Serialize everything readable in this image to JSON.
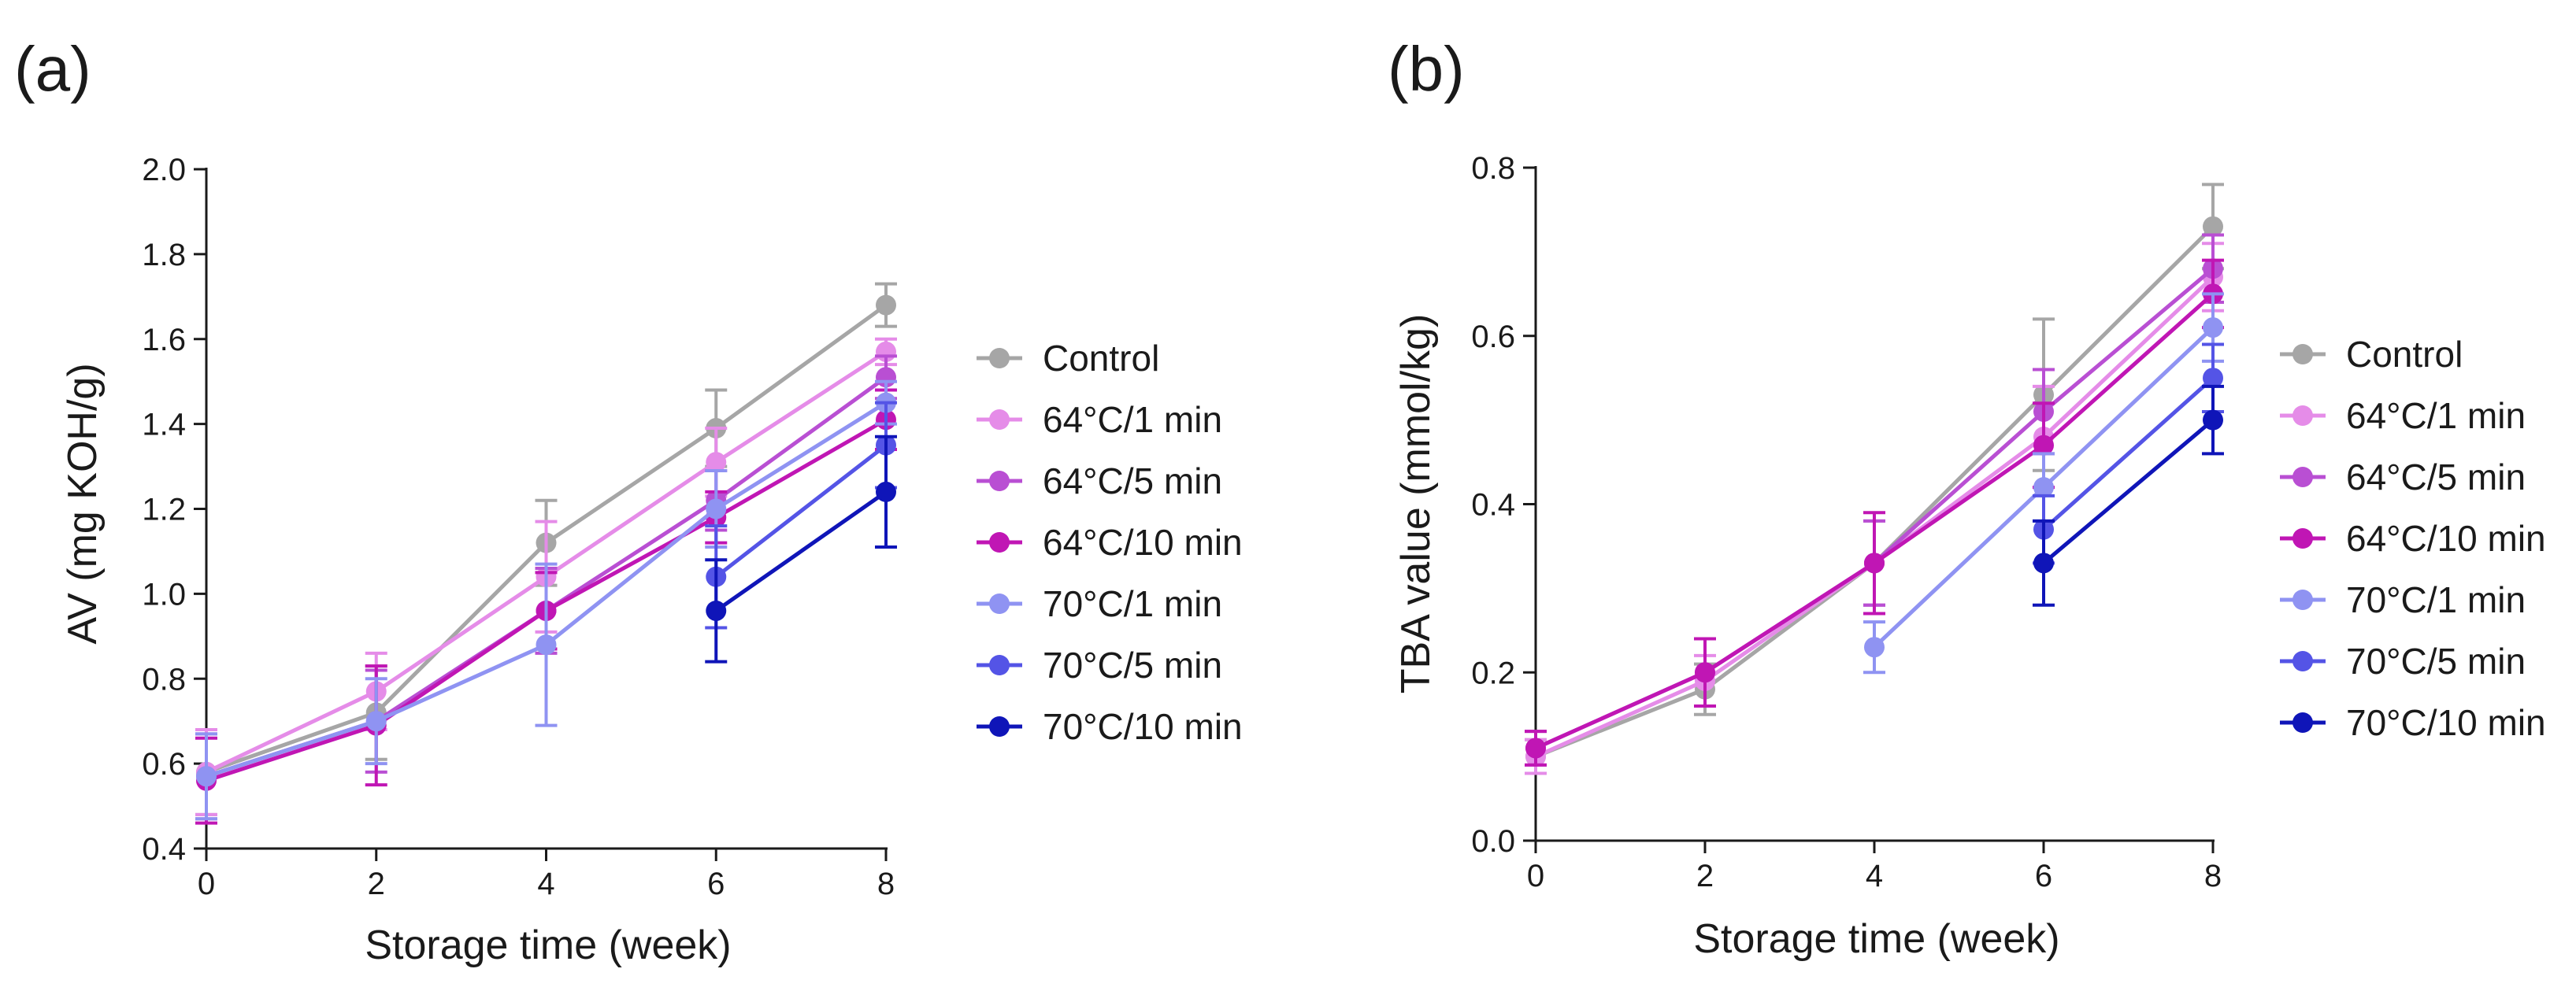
{
  "chart_data": [
    {
      "type": "line",
      "panel_label": "(a)",
      "title": "",
      "xlabel": "Storage time (week)",
      "ylabel": "AV (mg KOH/g)",
      "x": [
        0,
        2,
        4,
        6,
        8
      ],
      "xlim": [
        0,
        8
      ],
      "ylim": [
        0.4,
        2.0
      ],
      "xticks": [
        "0",
        "2",
        "4",
        "6",
        "8"
      ],
      "yticks": [
        "0.4",
        "0.6",
        "0.8",
        "1.0",
        "1.2",
        "1.4",
        "1.6",
        "1.8",
        "2.0"
      ],
      "grid": false,
      "legend_position": "right",
      "series": [
        {
          "name": "Control",
          "color": "#a6a6a6",
          "values": [
            0.58,
            0.72,
            1.12,
            1.39,
            1.68
          ],
          "errors": [
            0.1,
            0.11,
            0.1,
            0.09,
            0.05
          ]
        },
        {
          "name": "64°C/1 min",
          "color": "#e58ce8",
          "values": [
            0.58,
            0.77,
            1.04,
            1.31,
            1.57
          ],
          "errors": [
            0.1,
            0.09,
            0.13,
            0.08,
            0.03
          ]
        },
        {
          "name": "64°C/5 min",
          "color": "#b94fd3",
          "values": [
            0.57,
            0.7,
            0.96,
            1.22,
            1.51
          ],
          "errors": [
            0.1,
            0.12,
            0.1,
            0.07,
            0.05
          ]
        },
        {
          "name": "64°C/10 min",
          "color": "#c016b4",
          "values": [
            0.56,
            0.69,
            0.96,
            1.18,
            1.41
          ],
          "errors": [
            0.1,
            0.14,
            0.09,
            0.06,
            0.07
          ]
        },
        {
          "name": "70°C/1 min",
          "color": "#8f93f2",
          "values": [
            0.57,
            0.7,
            0.88,
            1.2,
            1.45
          ],
          "errors": [
            0.1,
            0.1,
            0.19,
            0.09,
            0.05
          ]
        },
        {
          "name": "70°C/5 min",
          "color": "#5454e6",
          "values": [
            null,
            null,
            null,
            1.04,
            1.35
          ],
          "errors": [
            null,
            null,
            null,
            0.12,
            0.1
          ]
        },
        {
          "name": "70°C/10 min",
          "color": "#0f15b8",
          "values": [
            null,
            null,
            null,
            0.96,
            1.24
          ],
          "errors": [
            null,
            null,
            null,
            0.12,
            0.13
          ]
        }
      ]
    },
    {
      "type": "line",
      "panel_label": "(b)",
      "title": "",
      "xlabel": "Storage time (week)",
      "ylabel": "TBA value (mmol/kg)",
      "x": [
        0,
        2,
        4,
        6,
        8
      ],
      "xlim": [
        0,
        8
      ],
      "ylim": [
        0.0,
        0.8
      ],
      "xticks": [
        "0",
        "2",
        "4",
        "6",
        "8"
      ],
      "yticks": [
        "0.0",
        "0.2",
        "0.4",
        "0.6",
        "0.8"
      ],
      "grid": false,
      "legend_position": "right",
      "series": [
        {
          "name": "Control",
          "color": "#a6a6a6",
          "values": [
            0.1,
            0.18,
            0.33,
            0.53,
            0.73
          ],
          "errors": [
            0.02,
            0.03,
            0.05,
            0.09,
            0.05
          ]
        },
        {
          "name": "64°C/1 min",
          "color": "#e58ce8",
          "values": [
            0.1,
            0.19,
            0.33,
            0.48,
            0.67
          ],
          "errors": [
            0.02,
            0.03,
            0.05,
            0.06,
            0.04
          ]
        },
        {
          "name": "64°C/5 min",
          "color": "#b94fd3",
          "values": [
            0.11,
            0.2,
            0.33,
            0.51,
            0.68
          ],
          "errors": [
            0.02,
            0.04,
            0.05,
            0.05,
            0.04
          ]
        },
        {
          "name": "64°C/10 min",
          "color": "#c016b4",
          "values": [
            0.11,
            0.2,
            0.33,
            0.47,
            0.65
          ],
          "errors": [
            0.02,
            0.04,
            0.06,
            0.05,
            0.04
          ]
        },
        {
          "name": "70°C/1 min",
          "color": "#8f93f2",
          "values": [
            null,
            null,
            0.23,
            0.42,
            0.61
          ],
          "errors": [
            null,
            null,
            0.03,
            0.04,
            0.04
          ]
        },
        {
          "name": "70°C/5 min",
          "color": "#5454e6",
          "values": [
            null,
            null,
            null,
            0.37,
            0.55
          ],
          "errors": [
            null,
            null,
            null,
            0.04,
            0.04
          ]
        },
        {
          "name": "70°C/10 min",
          "color": "#0f15b8",
          "values": [
            null,
            null,
            null,
            0.33,
            0.5
          ],
          "errors": [
            null,
            null,
            null,
            0.05,
            0.04
          ]
        }
      ]
    }
  ]
}
